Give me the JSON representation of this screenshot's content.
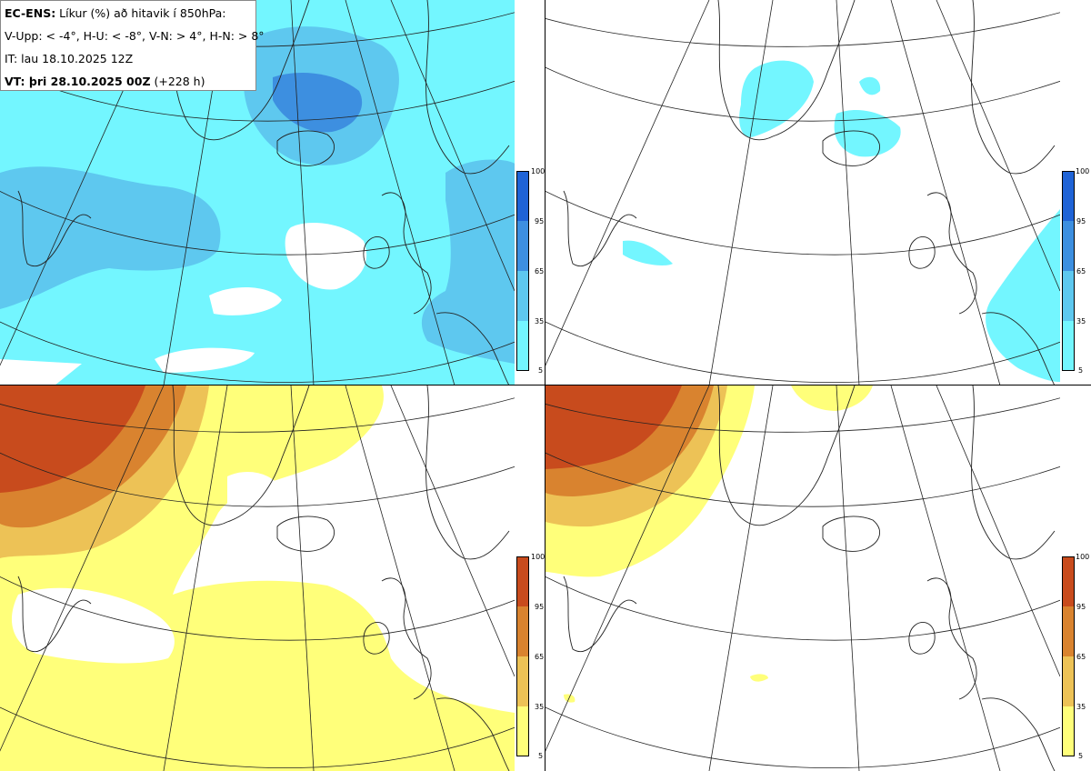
{
  "header": {
    "line1_bold": "EC-ENS:",
    "line1_rest": " Líkur (%) að hitavik í 850hPa:",
    "line2": "V-Upp: < -4°, H-U: < -8°, V-N: > 4°, H-N: > 8°",
    "line3": "IT: lau 18.10.2025 12Z",
    "line4_bold": "VT: þri 28.10.2025 00Z",
    "line4_rest": " (+228 h)"
  },
  "colorbars": {
    "ticks": [
      "100",
      "95",
      "65",
      "35",
      "5"
    ],
    "cold_colors": [
      "#1f63d6",
      "#3d8fe0",
      "#5ec8ef",
      "#73f6ff"
    ],
    "warm_colors": [
      "#c84b1d",
      "#d9832f",
      "#edc256",
      "#ffff7a"
    ]
  },
  "panels": [
    {
      "name": "V-Upp",
      "scale": "cold"
    },
    {
      "name": "H-U",
      "scale": "cold"
    },
    {
      "name": "V-N",
      "scale": "warm"
    },
    {
      "name": "H-N",
      "scale": "warm"
    }
  ]
}
